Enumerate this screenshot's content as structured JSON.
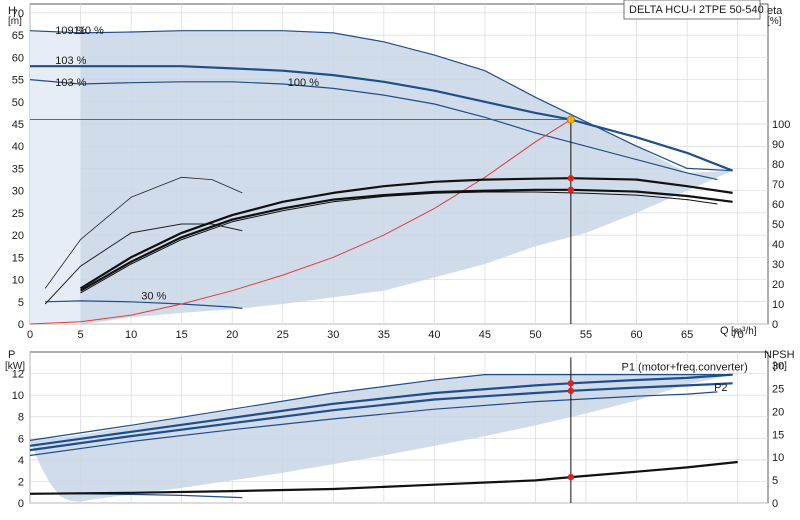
{
  "chart_data": [
    {
      "type": "line",
      "title": "DELTA HCU-I 2TPE 50-540",
      "ylabel_left": "H",
      "ylabel_left_unit": "[m]",
      "ylabel_right": "eta",
      "ylabel_right_unit": "[%]",
      "xlabel": "Q",
      "xlabel_unit": "[m³/h]",
      "xlim": [
        0,
        73
      ],
      "ylim_left": [
        0,
        72
      ],
      "ylim_right": [
        0,
        100
      ],
      "x_ticks": [
        0,
        5,
        10,
        15,
        20,
        25,
        30,
        35,
        40,
        45,
        50,
        55,
        60,
        65,
        70
      ],
      "y_ticks_left": [
        0,
        5,
        10,
        15,
        20,
        25,
        30,
        35,
        40,
        45,
        50,
        55,
        60,
        65,
        70
      ],
      "y_ticks_right": [
        0,
        10,
        20,
        30,
        40,
        50,
        60,
        70,
        80,
        90,
        100
      ],
      "grid": true,
      "annotations": [
        {
          "text": "103 %",
          "x": 2.5,
          "y": 58.5
        },
        {
          "text": "103 %",
          "x": 2.5,
          "y": 53.5
        },
        {
          "text": "100 %",
          "x": 25.5,
          "y": 53.5
        },
        {
          "text": "30 %",
          "x": 11,
          "y": 5.5
        }
      ],
      "overlap_label_a": "109 %",
      "overlap_label_b": "110 %",
      "operating_region": {
        "x": [
          0,
          5,
          7,
          10,
          15,
          20,
          25,
          30,
          35,
          40,
          45,
          50,
          55,
          60,
          65,
          69.5,
          65,
          60,
          55,
          50,
          45,
          40,
          35,
          30,
          25,
          21,
          15,
          10,
          7,
          5,
          4,
          3,
          2,
          1,
          0
        ],
        "y": [
          66,
          65.5,
          65.7,
          65.7,
          66,
          66,
          66,
          65.5,
          63.5,
          60.5,
          57,
          51,
          45.5,
          40,
          34,
          34.5,
          30,
          25,
          20.5,
          17.5,
          13.5,
          10.5,
          7.5,
          6,
          4.5,
          3.5,
          2.5,
          1.5,
          0.5,
          0,
          5,
          15,
          30,
          50,
          66
        ]
      },
      "series": [
        {
          "name": "",
          "kind": "head",
          "x": [
            0,
            5,
            10,
            15,
            20,
            25,
            30,
            35,
            40,
            45,
            50,
            55,
            60,
            65,
            69.5
          ],
          "y": [
            66,
            65.5,
            65.7,
            66,
            66,
            66,
            65.5,
            63.5,
            60.5,
            57,
            51,
            45.5,
            40,
            35,
            34.5
          ],
          "color": "#1f4e8c",
          "width": 1.2
        },
        {
          "name": "",
          "kind": "head",
          "x": [
            0,
            5,
            10,
            15,
            20,
            25,
            30,
            35,
            40,
            45,
            50,
            53.5,
            60,
            65,
            69.5
          ],
          "y": [
            58,
            58,
            58,
            58,
            57.5,
            57,
            56,
            54.5,
            52.5,
            50,
            47.5,
            46,
            42,
            38.5,
            34.5
          ],
          "color": "#1f4e8c",
          "width": 2.2
        },
        {
          "name": "",
          "kind": "head",
          "x": [
            0,
            5,
            10,
            15,
            20,
            25,
            30,
            35,
            40,
            45,
            50,
            55,
            60,
            65,
            68
          ],
          "y": [
            55,
            54,
            54.3,
            54.5,
            54.5,
            54,
            53,
            51.5,
            49.5,
            46.5,
            43,
            40,
            37,
            34,
            32.5
          ],
          "color": "#1f4e8c",
          "width": 1.2
        },
        {
          "name": "",
          "kind": "head",
          "x": [
            1.5,
            5,
            10,
            15,
            20,
            21
          ],
          "y": [
            5,
            5.2,
            5,
            4.5,
            3.8,
            3.5
          ],
          "color": "#1f4e8c",
          "width": 1.2
        },
        {
          "name": "",
          "kind": "system",
          "x": [
            0,
            5,
            10,
            15,
            20,
            25,
            30,
            35,
            40,
            45,
            50,
            53.5
          ],
          "y": [
            0,
            0.5,
            2,
            4.5,
            7.5,
            11,
            15,
            20,
            26,
            33,
            41,
            46
          ],
          "color": "#e23b3b",
          "width": 1
        },
        {
          "name": "",
          "kind": "eta",
          "x": [
            1.5,
            5,
            10,
            15,
            18,
            21
          ],
          "y": [
            8,
            19,
            28.5,
            33,
            32.5,
            29.5
          ],
          "color": "#222222",
          "width": 0.8
        },
        {
          "name": "",
          "kind": "eta",
          "x": [
            1.5,
            5,
            10,
            15,
            18,
            21
          ],
          "y": [
            4.5,
            13,
            20.5,
            22.5,
            22.5,
            21
          ],
          "color": "#222222",
          "width": 1
        },
        {
          "name": "",
          "kind": "eta",
          "x": [
            5,
            10,
            15,
            20,
            25,
            30,
            35,
            40,
            45,
            50,
            53.5,
            60,
            65,
            69.5
          ],
          "y": [
            8,
            15,
            20.5,
            24.5,
            27.5,
            29.5,
            31,
            32,
            32.5,
            32.7,
            32.8,
            32.5,
            31,
            29.5
          ],
          "color": "#111111",
          "width": 2.2
        },
        {
          "name": "",
          "kind": "eta",
          "x": [
            5,
            10,
            15,
            20,
            25,
            30,
            35,
            40,
            45,
            50,
            53.5,
            60,
            65,
            69.5
          ],
          "y": [
            7.5,
            14,
            19.5,
            23.5,
            26,
            28,
            29,
            29.7,
            30,
            30.2,
            30.2,
            29.8,
            28.8,
            27.5
          ],
          "color": "#111111",
          "width": 2.2
        },
        {
          "name": "",
          "kind": "eta",
          "x": [
            5,
            10,
            15,
            20,
            25,
            30,
            35,
            40,
            45,
            50,
            55,
            60,
            65,
            68
          ],
          "y": [
            7,
            13.5,
            19,
            23,
            25.5,
            27.5,
            28.7,
            29.4,
            29.7,
            29.7,
            29.4,
            29,
            28,
            27
          ],
          "color": "#111111",
          "width": 1
        }
      ],
      "reference_lines": [
        {
          "orientation": "horizontal",
          "y": 46,
          "x_end": 53.5
        },
        {
          "orientation": "vertical",
          "x": 53.5,
          "y_start": 0,
          "y_end": 46
        }
      ],
      "duty_point": {
        "x": 53.5,
        "y": 46
      },
      "markers": [
        {
          "x": 53.5,
          "y": 32.8
        },
        {
          "x": 53.5,
          "y": 30.2
        }
      ]
    },
    {
      "type": "line",
      "ylabel_left": "P",
      "ylabel_left_unit": "[kW]",
      "ylabel_right": "NPSH",
      "ylabel_right_unit": "[m]",
      "xlim": [
        0,
        73
      ],
      "ylim_left": [
        0,
        14
      ],
      "ylim_right": [
        0,
        33
      ],
      "y_ticks_left": [
        0,
        2,
        4,
        6,
        8,
        10,
        12
      ],
      "y_ticks_right": [
        0,
        5,
        10,
        15,
        20,
        25,
        30
      ],
      "grid": true,
      "operating_region": {
        "x": [
          0,
          5,
          10,
          15,
          20,
          25,
          30,
          35,
          40,
          45,
          50,
          55,
          60,
          65,
          70,
          65,
          60,
          55,
          50,
          45,
          40,
          35,
          30,
          25,
          20,
          15,
          10,
          6,
          5,
          4,
          3,
          2,
          1,
          0
        ],
        "y": [
          5.8,
          6.3,
          7.1,
          7.9,
          8.6,
          9.4,
          10.2,
          10.8,
          11.3,
          11.9,
          12,
          12,
          12,
          12,
          12,
          11,
          9.5,
          8.3,
          7.2,
          6.2,
          5.3,
          4.4,
          3.6,
          2.8,
          2.1,
          1.4,
          0.8,
          0.3,
          0.1,
          0.2,
          0.6,
          1.8,
          3.5,
          5.8
        ],
        "blue_area": true
      },
      "series": [
        {
          "name": "",
          "kind": "power",
          "x": [
            0,
            10,
            20,
            30,
            40,
            45,
            50,
            55,
            60,
            65,
            69.5
          ],
          "y": [
            5.8,
            7.2,
            8.7,
            10.2,
            11.4,
            11.9,
            11.9,
            11.9,
            11.9,
            11.9,
            11.9
          ],
          "color": "#1f4e8c",
          "width": 1.2
        },
        {
          "name": "",
          "kind": "power",
          "x": [
            0,
            10,
            20,
            30,
            40,
            50,
            53.5,
            60,
            65,
            69.5
          ],
          "y": [
            5.3,
            6.6,
            7.9,
            9.2,
            10.2,
            10.9,
            11.1,
            11.4,
            11.6,
            11.9
          ],
          "color": "#1f4e8c",
          "width": 2.2
        },
        {
          "name": "",
          "kind": "power",
          "x": [
            0,
            10,
            20,
            30,
            40,
            50,
            53.5,
            60,
            65,
            69.5
          ],
          "y": [
            4.9,
            6.2,
            7.4,
            8.6,
            9.6,
            10.2,
            10.4,
            10.7,
            10.9,
            11.1
          ],
          "color": "#1f4e8c",
          "width": 2.2
        },
        {
          "name": "",
          "kind": "power",
          "x": [
            0,
            10,
            20,
            30,
            40,
            50,
            60,
            65,
            68
          ],
          "y": [
            4.4,
            5.7,
            6.8,
            7.8,
            8.7,
            9.4,
            9.9,
            10.1,
            10.3
          ],
          "color": "#1f4e8c",
          "width": 1.2
        },
        {
          "name": "",
          "kind": "power_min",
          "x": [
            0,
            5,
            10,
            15,
            21
          ],
          "y": [
            0.9,
            0.85,
            0.8,
            0.7,
            0.5
          ],
          "color": "#1f4e8c",
          "width": 1.2
        },
        {
          "name": "",
          "kind": "npsh",
          "x": [
            0,
            10,
            20,
            30,
            40,
            50,
            53.5,
            60,
            65,
            70
          ],
          "y": [
            0.85,
            0.95,
            1.1,
            1.3,
            1.7,
            2.1,
            2.4,
            2.9,
            3.3,
            3.8
          ],
          "color": "#111111",
          "width": 2.2
        }
      ],
      "series_labels": [
        {
          "text": "P1 (motor+freq.converter)",
          "x": 71,
          "y": 12.3,
          "color": "#1f4e8c",
          "anchor": "end"
        },
        {
          "text": "P2",
          "x": 69,
          "y": 10.4,
          "color": "#1f4e8c",
          "anchor": "end"
        }
      ],
      "reference_lines": [
        {
          "orientation": "vertical",
          "x": 53.5,
          "y_start": 0,
          "y_end": 13.5
        }
      ],
      "markers": [
        {
          "x": 53.5,
          "y": 11.1
        },
        {
          "x": 53.5,
          "y": 10.4
        },
        {
          "x": 53.5,
          "y": 2.4
        }
      ]
    }
  ]
}
